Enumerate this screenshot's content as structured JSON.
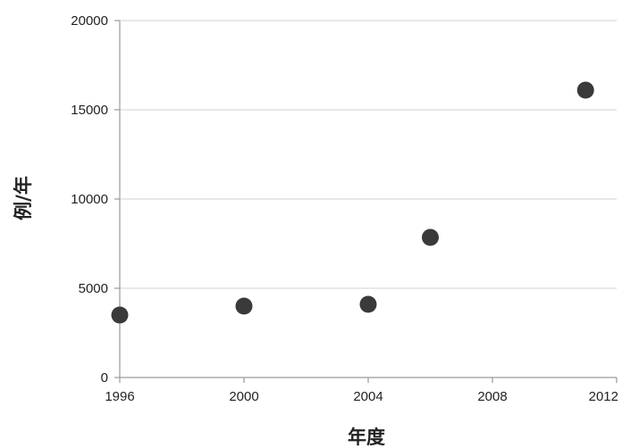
{
  "chart_data": {
    "type": "scatter",
    "title": "",
    "xlabel": "年度",
    "ylabel": "例/年",
    "xlim": [
      1996,
      2012
    ],
    "ylim": [
      0,
      20000
    ],
    "x_ticks": [
      1996,
      2000,
      2004,
      2008,
      2012
    ],
    "y_ticks": [
      0,
      5000,
      10000,
      15000,
      20000
    ],
    "grid": true,
    "legend": "none",
    "point_color": "#3a3a3a",
    "points": [
      {
        "x": 1996,
        "y": 3500
      },
      {
        "x": 2000,
        "y": 4000
      },
      {
        "x": 2004,
        "y": 4100
      },
      {
        "x": 2006,
        "y": 7850
      },
      {
        "x": 2011,
        "y": 16100
      }
    ]
  }
}
